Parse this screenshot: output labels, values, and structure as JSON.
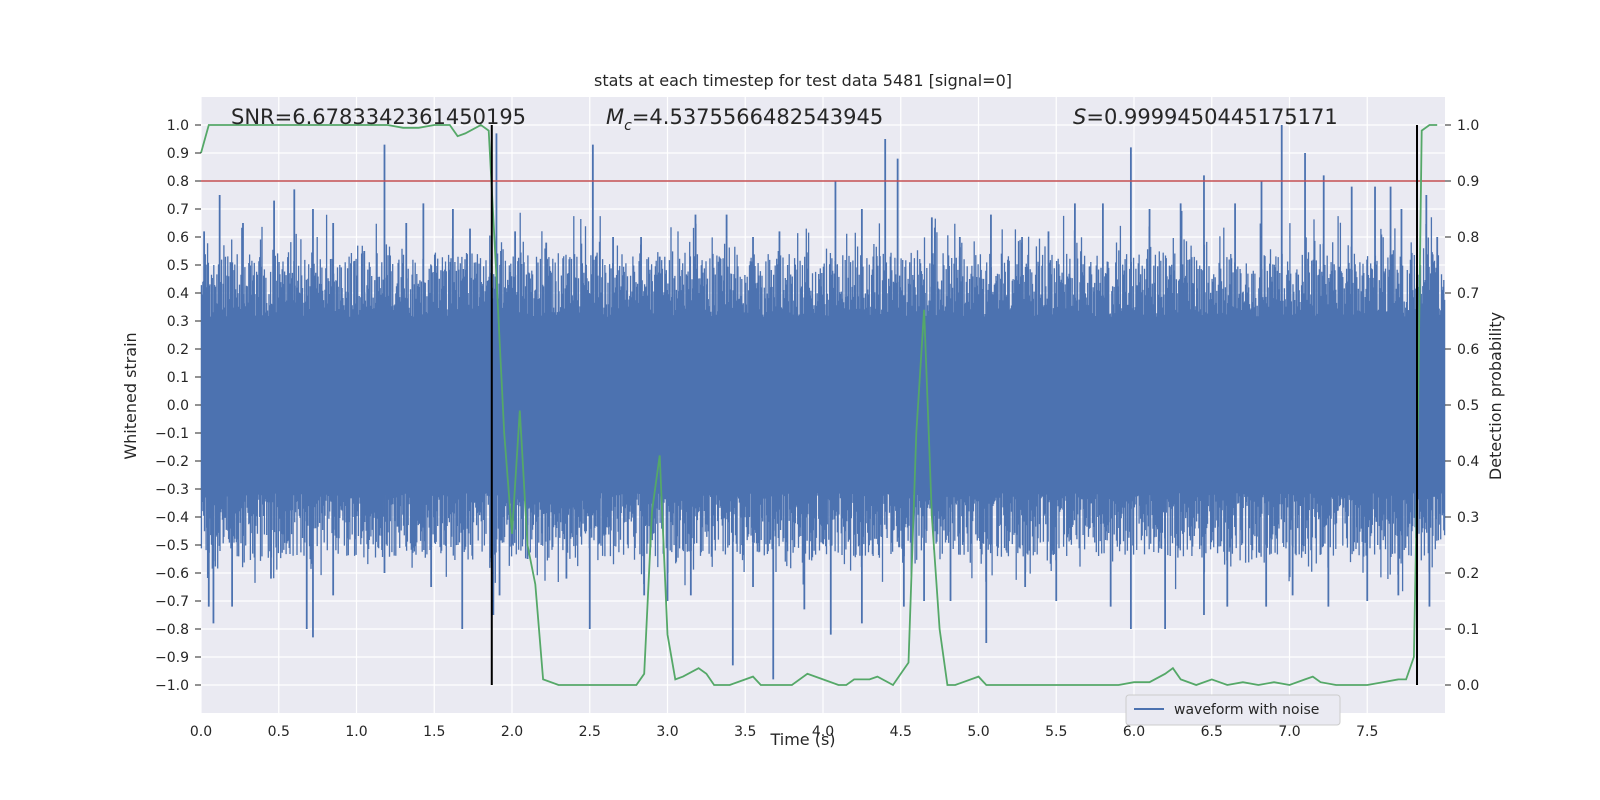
{
  "chart_data": {
    "type": "line",
    "title": "stats at each timestep for test data 5481 [signal=0]",
    "xlabel": "Time (s)",
    "ylabel": "Whitened strain",
    "ylabel_right": "Detection probability",
    "xlim": [
      0.0,
      8.0
    ],
    "ylim": [
      -1.1,
      1.1
    ],
    "ylim_right": [
      -0.05,
      1.05
    ],
    "x_ticks": [
      "0.0",
      "0.5",
      "1.0",
      "1.5",
      "2.0",
      "2.5",
      "3.0",
      "3.5",
      "4.0",
      "4.5",
      "5.0",
      "5.5",
      "6.0",
      "6.5",
      "7.0",
      "7.5"
    ],
    "x_tick_values": [
      0.0,
      0.5,
      1.0,
      1.5,
      2.0,
      2.5,
      3.0,
      3.5,
      4.0,
      4.5,
      5.0,
      5.5,
      6.0,
      6.5,
      7.0,
      7.5
    ],
    "y_ticks": [
      "1.0",
      "0.9",
      "0.8",
      "0.7",
      "0.6",
      "0.5",
      "0.4",
      "0.3",
      "0.2",
      "0.1",
      "0.0",
      "−0.1",
      "−0.2",
      "−0.3",
      "−0.4",
      "−0.5",
      "−0.6",
      "−0.7",
      "−0.8",
      "−0.9",
      "−1.0"
    ],
    "y_tick_values": [
      1.0,
      0.9,
      0.8,
      0.7,
      0.6,
      0.5,
      0.4,
      0.3,
      0.2,
      0.1,
      0.0,
      -0.1,
      -0.2,
      -0.3,
      -0.4,
      -0.5,
      -0.6,
      -0.7,
      -0.8,
      -0.9,
      -1.0
    ],
    "y_ticks_right": [
      "1.0",
      "0.9",
      "0.8",
      "0.7",
      "0.6",
      "0.5",
      "0.4",
      "0.3",
      "0.2",
      "0.1",
      "0.0"
    ],
    "y_tick_values_right": [
      1.0,
      0.9,
      0.8,
      0.7,
      0.6,
      0.5,
      0.4,
      0.3,
      0.2,
      0.1,
      0.0
    ],
    "annotations": {
      "snr": "SNR=6.6783342361450195",
      "mc_symbol": "M",
      "mc_sub": "c",
      "mc_value": "=4.5375566482543945",
      "s_symbol": "S",
      "s_value": "=0.9999450445175171"
    },
    "legend": {
      "label": "waveform with noise",
      "position": "lower-right"
    },
    "threshold_line": {
      "y": 0.8,
      "color": "#c44e52"
    },
    "vertical_lines": [
      1.87,
      7.82
    ],
    "vline_color": "#000000",
    "waveform": {
      "name": "waveform with noise",
      "color": "#4c72b0",
      "x_range": [
        0.0,
        8.0
      ],
      "samples": 1600,
      "typical_envelope": 0.42,
      "peaks": [
        [
          0.02,
          0.62
        ],
        [
          0.12,
          0.75
        ],
        [
          0.27,
          0.65
        ],
        [
          0.47,
          0.73
        ],
        [
          0.6,
          0.77
        ],
        [
          0.72,
          0.7
        ],
        [
          0.85,
          0.65
        ],
        [
          1.05,
          0.55
        ],
        [
          1.18,
          0.93
        ],
        [
          1.32,
          0.65
        ],
        [
          1.43,
          0.72
        ],
        [
          1.62,
          0.7
        ],
        [
          1.73,
          0.63
        ],
        [
          1.9,
          0.97
        ],
        [
          2.02,
          0.62
        ],
        [
          2.22,
          0.58
        ],
        [
          2.52,
          0.93
        ],
        [
          2.65,
          0.6
        ],
        [
          2.83,
          0.6
        ],
        [
          2.95,
          0.53
        ],
        [
          3.18,
          0.68
        ],
        [
          3.38,
          0.68
        ],
        [
          3.55,
          0.6
        ],
        [
          3.72,
          0.62
        ],
        [
          4.08,
          0.8
        ],
        [
          4.25,
          0.7
        ],
        [
          4.4,
          0.95
        ],
        [
          4.48,
          0.88
        ],
        [
          4.7,
          0.67
        ],
        [
          4.88,
          0.6
        ],
        [
          5.08,
          0.68
        ],
        [
          5.28,
          0.6
        ],
        [
          5.45,
          0.62
        ],
        [
          5.62,
          0.72
        ],
        [
          5.8,
          0.72
        ],
        [
          5.98,
          0.92
        ],
        [
          6.1,
          0.7
        ],
        [
          6.3,
          0.72
        ],
        [
          6.45,
          0.82
        ],
        [
          6.65,
          0.72
        ],
        [
          6.82,
          0.8
        ],
        [
          6.95,
          1.0
        ],
        [
          7.1,
          0.9
        ],
        [
          7.22,
          0.82
        ],
        [
          7.4,
          0.78
        ],
        [
          7.55,
          0.78
        ],
        [
          7.65,
          0.78
        ],
        [
          7.72,
          0.7
        ],
        [
          7.88,
          0.75
        ],
        [
          7.95,
          0.6
        ]
      ],
      "troughs": [
        [
          0.05,
          -0.72
        ],
        [
          0.08,
          -0.78
        ],
        [
          0.2,
          -0.72
        ],
        [
          0.45,
          -0.62
        ],
        [
          0.68,
          -0.8
        ],
        [
          0.72,
          -0.83
        ],
        [
          0.85,
          -0.68
        ],
        [
          1.18,
          -0.6
        ],
        [
          1.48,
          -0.65
        ],
        [
          1.68,
          -0.8
        ],
        [
          1.88,
          -0.75
        ],
        [
          1.92,
          -0.68
        ],
        [
          2.1,
          -0.55
        ],
        [
          2.35,
          -0.62
        ],
        [
          2.5,
          -0.8
        ],
        [
          2.85,
          -0.68
        ],
        [
          3.0,
          -0.7
        ],
        [
          3.15,
          -0.68
        ],
        [
          3.42,
          -0.93
        ],
        [
          3.55,
          -0.65
        ],
        [
          3.68,
          -0.98
        ],
        [
          3.88,
          -0.73
        ],
        [
          4.05,
          -0.82
        ],
        [
          4.25,
          -0.78
        ],
        [
          4.52,
          -0.72
        ],
        [
          4.65,
          -0.7
        ],
        [
          4.82,
          -0.7
        ],
        [
          5.05,
          -0.85
        ],
        [
          5.3,
          -0.65
        ],
        [
          5.5,
          -0.7
        ],
        [
          5.85,
          -0.72
        ],
        [
          5.98,
          -0.8
        ],
        [
          6.2,
          -0.8
        ],
        [
          6.45,
          -0.75
        ],
        [
          6.6,
          -0.72
        ],
        [
          6.85,
          -0.72
        ],
        [
          7.02,
          -0.68
        ],
        [
          7.25,
          -0.72
        ],
        [
          7.5,
          -0.7
        ],
        [
          7.7,
          -0.68
        ],
        [
          7.9,
          -0.72
        ]
      ]
    },
    "probability": {
      "name": "detection probability",
      "color": "#55a868",
      "x": [
        0.0,
        0.05,
        0.1,
        0.2,
        0.3,
        0.4,
        0.5,
        0.6,
        0.7,
        0.8,
        0.9,
        1.0,
        1.1,
        1.2,
        1.3,
        1.4,
        1.5,
        1.6,
        1.65,
        1.7,
        1.8,
        1.85,
        1.9,
        1.95,
        2.0,
        2.05,
        2.1,
        2.15,
        2.2,
        2.3,
        2.4,
        2.5,
        2.6,
        2.7,
        2.8,
        2.85,
        2.9,
        2.95,
        3.0,
        3.05,
        3.1,
        3.2,
        3.25,
        3.3,
        3.4,
        3.5,
        3.55,
        3.6,
        3.7,
        3.8,
        3.9,
        4.0,
        4.1,
        4.15,
        4.2,
        4.3,
        4.35,
        4.45,
        4.55,
        4.6,
        4.65,
        4.7,
        4.75,
        4.8,
        4.85,
        4.9,
        5.0,
        5.05,
        5.1,
        5.2,
        5.3,
        5.5,
        5.7,
        5.9,
        6.0,
        6.1,
        6.2,
        6.25,
        6.3,
        6.4,
        6.5,
        6.6,
        6.7,
        6.8,
        6.9,
        7.0,
        7.1,
        7.15,
        7.2,
        7.3,
        7.4,
        7.5,
        7.6,
        7.7,
        7.75,
        7.8,
        7.82,
        7.85,
        7.9,
        7.95
      ],
      "y": [
        0.95,
        1.0,
        1.0,
        1.0,
        1.0,
        1.0,
        1.0,
        1.0,
        1.0,
        1.0,
        1.0,
        1.0,
        1.0,
        1.0,
        0.995,
        0.995,
        1.0,
        1.0,
        0.98,
        0.985,
        1.0,
        0.99,
        0.73,
        0.45,
        0.27,
        0.49,
        0.25,
        0.18,
        0.01,
        0.0,
        0.0,
        0.0,
        0.0,
        0.0,
        0.0,
        0.02,
        0.31,
        0.41,
        0.09,
        0.01,
        0.015,
        0.03,
        0.02,
        0.0,
        0.0,
        0.01,
        0.015,
        0.0,
        0.0,
        0.0,
        0.02,
        0.01,
        0.0,
        0.0,
        0.01,
        0.01,
        0.015,
        0.0,
        0.04,
        0.45,
        0.67,
        0.3,
        0.1,
        0.0,
        0.0,
        0.005,
        0.015,
        0.0,
        0.0,
        0.0,
        0.0,
        0.0,
        0.0,
        0.0,
        0.005,
        0.005,
        0.02,
        0.03,
        0.01,
        0.0,
        0.01,
        0.0,
        0.005,
        0.0,
        0.005,
        0.0,
        0.01,
        0.015,
        0.005,
        0.0,
        0.0,
        0.0,
        0.005,
        0.01,
        0.01,
        0.05,
        0.35,
        0.99,
        1.0,
        1.0
      ]
    }
  }
}
